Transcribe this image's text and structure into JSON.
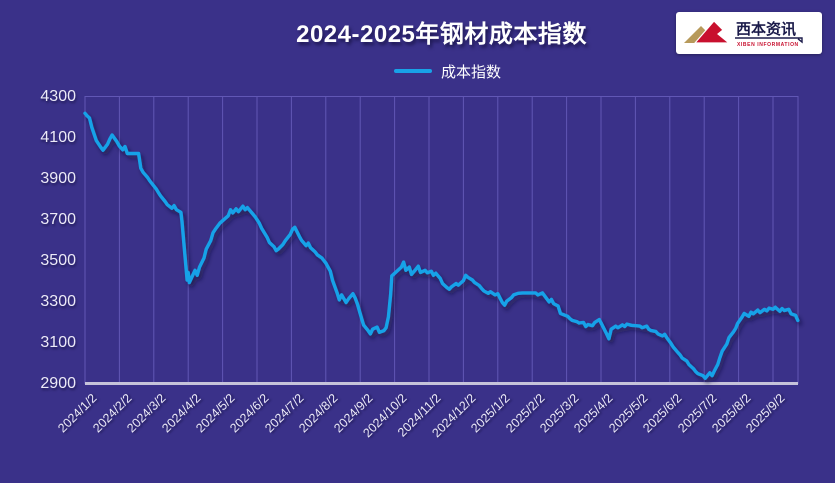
{
  "page": {
    "title": "2024-2025年钢材成本指数"
  },
  "legend": {
    "label": "成本指数"
  },
  "logo": {
    "cn": "西本资讯",
    "en": "XIBEN INFORMATION"
  },
  "colors": {
    "background": "#3A3189",
    "gridline": "#6157B5",
    "axis_line": "#C6C3DA",
    "series_line": "#18A2E8",
    "tick_text": "#ECEAF8",
    "title_text": "#FFFFFF",
    "logo_red": "#C8102E",
    "logo_gold": "#B79A5B",
    "logo_text": "#1B1B4A"
  },
  "chart_data": {
    "type": "line",
    "title": "2024-2025年钢材成本指数",
    "legend_position": "top-center",
    "grid": "vertical-only",
    "ylim": [
      2900,
      4300
    ],
    "ytick_step": 200,
    "y_ticks": [
      4300,
      4100,
      3900,
      3700,
      3500,
      3300,
      3100,
      2900
    ],
    "x_ticks": [
      "2024/1/2",
      "2024/2/2",
      "2024/3/2",
      "2024/4/2",
      "2024/5/2",
      "2024/6/2",
      "2024/7/2",
      "2024/8/2",
      "2024/9/2",
      "2024/10/2",
      "2024/11/2",
      "2024/12/2",
      "2025/1/2",
      "2025/2/2",
      "2025/3/2",
      "2025/4/2",
      "2025/5/2",
      "2025/6/2",
      "2025/7/2",
      "2025/8/2",
      "2025/9/2"
    ],
    "series": [
      {
        "name": "成本指数",
        "color": "#18A2E8",
        "points": [
          [
            "2024/1/2",
            4218
          ],
          [
            "2024/1/4",
            4205
          ],
          [
            "2024/1/6",
            4195
          ],
          [
            "2024/1/8",
            4150
          ],
          [
            "2024/1/10",
            4118
          ],
          [
            "2024/1/12",
            4085
          ],
          [
            "2024/1/16",
            4052
          ],
          [
            "2024/1/18",
            4038
          ],
          [
            "2024/1/22",
            4068
          ],
          [
            "2024/1/24",
            4092
          ],
          [
            "2024/1/26",
            4112
          ],
          [
            "2024/1/30",
            4082
          ],
          [
            "2024/2/2",
            4058
          ],
          [
            "2024/2/5",
            4040
          ],
          [
            "2024/2/7",
            4056
          ],
          [
            "2024/2/9",
            4022
          ],
          [
            "2024/2/19",
            4022
          ],
          [
            "2024/2/21",
            3950
          ],
          [
            "2024/2/23",
            3930
          ],
          [
            "2024/2/27",
            3905
          ],
          [
            "2024/2/29",
            3888
          ],
          [
            "2024/3/4",
            3850
          ],
          [
            "2024/3/6",
            3832
          ],
          [
            "2024/3/8",
            3815
          ],
          [
            "2024/3/12",
            3788
          ],
          [
            "2024/3/14",
            3772
          ],
          [
            "2024/3/18",
            3755
          ],
          [
            "2024/3/20",
            3768
          ],
          [
            "2024/3/22",
            3748
          ],
          [
            "2024/3/26",
            3735
          ],
          [
            "2024/3/27",
            3690
          ],
          [
            "2024/3/29",
            3560
          ],
          [
            "2024/4/1",
            3405
          ],
          [
            "2024/4/2",
            3442
          ],
          [
            "2024/4/3",
            3392
          ],
          [
            "2024/4/8",
            3452
          ],
          [
            "2024/4/10",
            3428
          ],
          [
            "2024/4/12",
            3468
          ],
          [
            "2024/4/16",
            3512
          ],
          [
            "2024/4/18",
            3555
          ],
          [
            "2024/4/22",
            3598
          ],
          [
            "2024/4/24",
            3635
          ],
          [
            "2024/4/26",
            3652
          ],
          [
            "2024/4/30",
            3682
          ],
          [
            "2024/5/7",
            3718
          ],
          [
            "2024/5/9",
            3748
          ],
          [
            "2024/5/11",
            3732
          ],
          [
            "2024/5/14",
            3752
          ],
          [
            "2024/5/16",
            3738
          ],
          [
            "2024/5/20",
            3765
          ],
          [
            "2024/5/22",
            3748
          ],
          [
            "2024/5/24",
            3758
          ],
          [
            "2024/5/28",
            3732
          ],
          [
            "2024/5/31",
            3712
          ],
          [
            "2024/6/4",
            3682
          ],
          [
            "2024/6/6",
            3658
          ],
          [
            "2024/6/11",
            3612
          ],
          [
            "2024/6/13",
            3588
          ],
          [
            "2024/6/17",
            3568
          ],
          [
            "2024/6/19",
            3548
          ],
          [
            "2024/6/21",
            3556
          ],
          [
            "2024/6/25",
            3578
          ],
          [
            "2024/6/27",
            3596
          ],
          [
            "2024/7/1",
            3628
          ],
          [
            "2024/7/3",
            3652
          ],
          [
            "2024/7/5",
            3662
          ],
          [
            "2024/7/9",
            3618
          ],
          [
            "2024/7/11",
            3598
          ],
          [
            "2024/7/15",
            3572
          ],
          [
            "2024/7/17",
            3585
          ],
          [
            "2024/7/19",
            3562
          ],
          [
            "2024/7/23",
            3542
          ],
          [
            "2024/7/25",
            3528
          ],
          [
            "2024/7/29",
            3512
          ],
          [
            "2024/7/31",
            3498
          ],
          [
            "2024/8/2",
            3488
          ],
          [
            "2024/8/6",
            3448
          ],
          [
            "2024/8/8",
            3402
          ],
          [
            "2024/8/12",
            3342
          ],
          [
            "2024/8/14",
            3308
          ],
          [
            "2024/8/16",
            3332
          ],
          [
            "2024/8/20",
            3295
          ],
          [
            "2024/8/22",
            3312
          ],
          [
            "2024/8/26",
            3338
          ],
          [
            "2024/8/28",
            3318
          ],
          [
            "2024/8/30",
            3288
          ],
          [
            "2024/9/3",
            3222
          ],
          [
            "2024/9/5",
            3185
          ],
          [
            "2024/9/9",
            3158
          ],
          [
            "2024/9/11",
            3142
          ],
          [
            "2024/9/13",
            3165
          ],
          [
            "2024/9/17",
            3175
          ],
          [
            "2024/9/19",
            3150
          ],
          [
            "2024/9/23",
            3158
          ],
          [
            "2024/9/25",
            3172
          ],
          [
            "2024/9/27",
            3225
          ],
          [
            "2024/9/29",
            3338
          ],
          [
            "2024/9/30",
            3425
          ],
          [
            "2024/10/8",
            3468
          ],
          [
            "2024/10/10",
            3492
          ],
          [
            "2024/10/12",
            3452
          ],
          [
            "2024/10/15",
            3468
          ],
          [
            "2024/10/17",
            3432
          ],
          [
            "2024/10/21",
            3458
          ],
          [
            "2024/10/23",
            3472
          ],
          [
            "2024/10/25",
            3442
          ],
          [
            "2024/10/29",
            3452
          ],
          [
            "2024/10/31",
            3440
          ],
          [
            "2024/11/4",
            3448
          ],
          [
            "2024/11/6",
            3428
          ],
          [
            "2024/11/8",
            3438
          ],
          [
            "2024/11/12",
            3412
          ],
          [
            "2024/11/14",
            3388
          ],
          [
            "2024/11/18",
            3368
          ],
          [
            "2024/11/20",
            3360
          ],
          [
            "2024/11/22",
            3372
          ],
          [
            "2024/11/26",
            3388
          ],
          [
            "2024/11/28",
            3380
          ],
          [
            "2024/12/2",
            3402
          ],
          [
            "2024/12/4",
            3428
          ],
          [
            "2024/12/6",
            3418
          ],
          [
            "2024/12/10",
            3405
          ],
          [
            "2024/12/12",
            3392
          ],
          [
            "2024/12/16",
            3378
          ],
          [
            "2024/12/18",
            3365
          ],
          [
            "2024/12/20",
            3352
          ],
          [
            "2024/12/24",
            3340
          ],
          [
            "2024/12/26",
            3348
          ],
          [
            "2024/12/30",
            3332
          ],
          [
            "2025/1/2",
            3338
          ],
          [
            "2025/1/6",
            3295
          ],
          [
            "2025/1/8",
            3282
          ],
          [
            "2025/1/10",
            3302
          ],
          [
            "2025/1/14",
            3318
          ],
          [
            "2025/1/16",
            3332
          ],
          [
            "2025/1/20",
            3340
          ],
          [
            "2025/1/24",
            3342
          ],
          [
            "2025/2/5",
            3342
          ],
          [
            "2025/2/7",
            3332
          ],
          [
            "2025/2/11",
            3342
          ],
          [
            "2025/2/13",
            3328
          ],
          [
            "2025/2/17",
            3298
          ],
          [
            "2025/2/19",
            3310
          ],
          [
            "2025/2/21",
            3290
          ],
          [
            "2025/2/25",
            3278
          ],
          [
            "2025/2/27",
            3242
          ],
          [
            "2025/3/3",
            3228
          ],
          [
            "2025/3/5",
            3216
          ],
          [
            "2025/3/7",
            3208
          ],
          [
            "2025/3/11",
            3202
          ],
          [
            "2025/3/13",
            3195
          ],
          [
            "2025/3/17",
            3198
          ],
          [
            "2025/3/19",
            3178
          ],
          [
            "2025/3/21",
            3188
          ],
          [
            "2025/3/25",
            3182
          ],
          [
            "2025/3/27",
            3198
          ],
          [
            "2025/3/31",
            3212
          ],
          [
            "2025/4/2",
            3196
          ],
          [
            "2025/4/7",
            3142
          ],
          [
            "2025/4/9",
            3118
          ],
          [
            "2025/4/11",
            3165
          ],
          [
            "2025/4/15",
            3180
          ],
          [
            "2025/4/17",
            3172
          ],
          [
            "2025/4/21",
            3186
          ],
          [
            "2025/4/23",
            3178
          ],
          [
            "2025/4/25",
            3190
          ],
          [
            "2025/4/29",
            3184
          ],
          [
            "2025/5/6",
            3180
          ],
          [
            "2025/5/8",
            3172
          ],
          [
            "2025/5/12",
            3180
          ],
          [
            "2025/5/14",
            3164
          ],
          [
            "2025/5/16",
            3158
          ],
          [
            "2025/5/20",
            3154
          ],
          [
            "2025/5/22",
            3142
          ],
          [
            "2025/5/26",
            3132
          ],
          [
            "2025/5/28",
            3140
          ],
          [
            "2025/5/30",
            3122
          ],
          [
            "2025/6/3",
            3096
          ],
          [
            "2025/6/5",
            3078
          ],
          [
            "2025/6/9",
            3052
          ],
          [
            "2025/6/11",
            3040
          ],
          [
            "2025/6/13",
            3024
          ],
          [
            "2025/6/17",
            3010
          ],
          [
            "2025/6/19",
            2992
          ],
          [
            "2025/6/23",
            2972
          ],
          [
            "2025/6/25",
            2958
          ],
          [
            "2025/6/27",
            2948
          ],
          [
            "2025/7/1",
            2938
          ],
          [
            "2025/7/3",
            2926
          ],
          [
            "2025/7/7",
            2952
          ],
          [
            "2025/7/9",
            2938
          ],
          [
            "2025/7/11",
            2962
          ],
          [
            "2025/7/14",
            2992
          ],
          [
            "2025/7/16",
            3028
          ],
          [
            "2025/7/18",
            3058
          ],
          [
            "2025/7/22",
            3092
          ],
          [
            "2025/7/24",
            3124
          ],
          [
            "2025/7/28",
            3152
          ],
          [
            "2025/7/30",
            3170
          ],
          [
            "2025/8/1",
            3192
          ],
          [
            "2025/8/5",
            3224
          ],
          [
            "2025/8/7",
            3242
          ],
          [
            "2025/8/11",
            3228
          ],
          [
            "2025/8/13",
            3248
          ],
          [
            "2025/8/15",
            3240
          ],
          [
            "2025/8/19",
            3258
          ],
          [
            "2025/8/21",
            3246
          ],
          [
            "2025/8/25",
            3262
          ],
          [
            "2025/8/27",
            3254
          ],
          [
            "2025/8/29",
            3268
          ],
          [
            "2025/9/2",
            3262
          ],
          [
            "2025/9/4",
            3272
          ],
          [
            "2025/9/8",
            3252
          ],
          [
            "2025/9/10",
            3266
          ],
          [
            "2025/9/12",
            3256
          ],
          [
            "2025/9/16",
            3262
          ],
          [
            "2025/9/18",
            3240
          ],
          [
            "2025/9/22",
            3232
          ],
          [
            "2025/9/24",
            3208
          ]
        ]
      }
    ]
  }
}
